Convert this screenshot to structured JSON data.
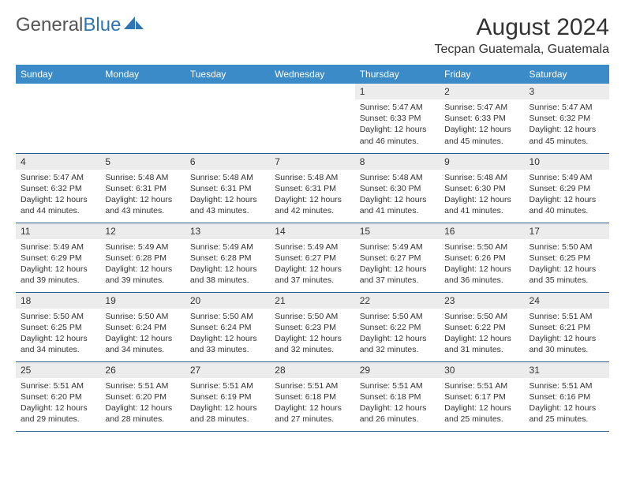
{
  "logo": {
    "text1": "General",
    "text2": "Blue"
  },
  "title": "August 2024",
  "subtitle": "Tecpan Guatemala, Guatemala",
  "style": {
    "header_bg": "#3b8bc9",
    "header_text": "#ffffff",
    "daynum_bg": "#ececec",
    "row_border": "#2e5c8a",
    "title_fontsize": 30,
    "subtitle_fontsize": 16,
    "th_fontsize": 12,
    "daynum_fontsize": 12,
    "details_fontsize": 10.5,
    "logo_color_general": "#555555",
    "logo_color_blue": "#2e75b6"
  },
  "columns": [
    "Sunday",
    "Monday",
    "Tuesday",
    "Wednesday",
    "Thursday",
    "Friday",
    "Saturday"
  ],
  "weeks": [
    [
      null,
      null,
      null,
      null,
      {
        "day": "1",
        "sunrise": "5:47 AM",
        "sunset": "6:33 PM",
        "daylight": "12 hours and 46 minutes."
      },
      {
        "day": "2",
        "sunrise": "5:47 AM",
        "sunset": "6:33 PM",
        "daylight": "12 hours and 45 minutes."
      },
      {
        "day": "3",
        "sunrise": "5:47 AM",
        "sunset": "6:32 PM",
        "daylight": "12 hours and 45 minutes."
      }
    ],
    [
      {
        "day": "4",
        "sunrise": "5:47 AM",
        "sunset": "6:32 PM",
        "daylight": "12 hours and 44 minutes."
      },
      {
        "day": "5",
        "sunrise": "5:48 AM",
        "sunset": "6:31 PM",
        "daylight": "12 hours and 43 minutes."
      },
      {
        "day": "6",
        "sunrise": "5:48 AM",
        "sunset": "6:31 PM",
        "daylight": "12 hours and 43 minutes."
      },
      {
        "day": "7",
        "sunrise": "5:48 AM",
        "sunset": "6:31 PM",
        "daylight": "12 hours and 42 minutes."
      },
      {
        "day": "8",
        "sunrise": "5:48 AM",
        "sunset": "6:30 PM",
        "daylight": "12 hours and 41 minutes."
      },
      {
        "day": "9",
        "sunrise": "5:48 AM",
        "sunset": "6:30 PM",
        "daylight": "12 hours and 41 minutes."
      },
      {
        "day": "10",
        "sunrise": "5:49 AM",
        "sunset": "6:29 PM",
        "daylight": "12 hours and 40 minutes."
      }
    ],
    [
      {
        "day": "11",
        "sunrise": "5:49 AM",
        "sunset": "6:29 PM",
        "daylight": "12 hours and 39 minutes."
      },
      {
        "day": "12",
        "sunrise": "5:49 AM",
        "sunset": "6:28 PM",
        "daylight": "12 hours and 39 minutes."
      },
      {
        "day": "13",
        "sunrise": "5:49 AM",
        "sunset": "6:28 PM",
        "daylight": "12 hours and 38 minutes."
      },
      {
        "day": "14",
        "sunrise": "5:49 AM",
        "sunset": "6:27 PM",
        "daylight": "12 hours and 37 minutes."
      },
      {
        "day": "15",
        "sunrise": "5:49 AM",
        "sunset": "6:27 PM",
        "daylight": "12 hours and 37 minutes."
      },
      {
        "day": "16",
        "sunrise": "5:50 AM",
        "sunset": "6:26 PM",
        "daylight": "12 hours and 36 minutes."
      },
      {
        "day": "17",
        "sunrise": "5:50 AM",
        "sunset": "6:25 PM",
        "daylight": "12 hours and 35 minutes."
      }
    ],
    [
      {
        "day": "18",
        "sunrise": "5:50 AM",
        "sunset": "6:25 PM",
        "daylight": "12 hours and 34 minutes."
      },
      {
        "day": "19",
        "sunrise": "5:50 AM",
        "sunset": "6:24 PM",
        "daylight": "12 hours and 34 minutes."
      },
      {
        "day": "20",
        "sunrise": "5:50 AM",
        "sunset": "6:24 PM",
        "daylight": "12 hours and 33 minutes."
      },
      {
        "day": "21",
        "sunrise": "5:50 AM",
        "sunset": "6:23 PM",
        "daylight": "12 hours and 32 minutes."
      },
      {
        "day": "22",
        "sunrise": "5:50 AM",
        "sunset": "6:22 PM",
        "daylight": "12 hours and 32 minutes."
      },
      {
        "day": "23",
        "sunrise": "5:50 AM",
        "sunset": "6:22 PM",
        "daylight": "12 hours and 31 minutes."
      },
      {
        "day": "24",
        "sunrise": "5:51 AM",
        "sunset": "6:21 PM",
        "daylight": "12 hours and 30 minutes."
      }
    ],
    [
      {
        "day": "25",
        "sunrise": "5:51 AM",
        "sunset": "6:20 PM",
        "daylight": "12 hours and 29 minutes."
      },
      {
        "day": "26",
        "sunrise": "5:51 AM",
        "sunset": "6:20 PM",
        "daylight": "12 hours and 28 minutes."
      },
      {
        "day": "27",
        "sunrise": "5:51 AM",
        "sunset": "6:19 PM",
        "daylight": "12 hours and 28 minutes."
      },
      {
        "day": "28",
        "sunrise": "5:51 AM",
        "sunset": "6:18 PM",
        "daylight": "12 hours and 27 minutes."
      },
      {
        "day": "29",
        "sunrise": "5:51 AM",
        "sunset": "6:18 PM",
        "daylight": "12 hours and 26 minutes."
      },
      {
        "day": "30",
        "sunrise": "5:51 AM",
        "sunset": "6:17 PM",
        "daylight": "12 hours and 25 minutes."
      },
      {
        "day": "31",
        "sunrise": "5:51 AM",
        "sunset": "6:16 PM",
        "daylight": "12 hours and 25 minutes."
      }
    ]
  ],
  "labels": {
    "sunrise": "Sunrise:",
    "sunset": "Sunset:",
    "daylight": "Daylight:"
  }
}
